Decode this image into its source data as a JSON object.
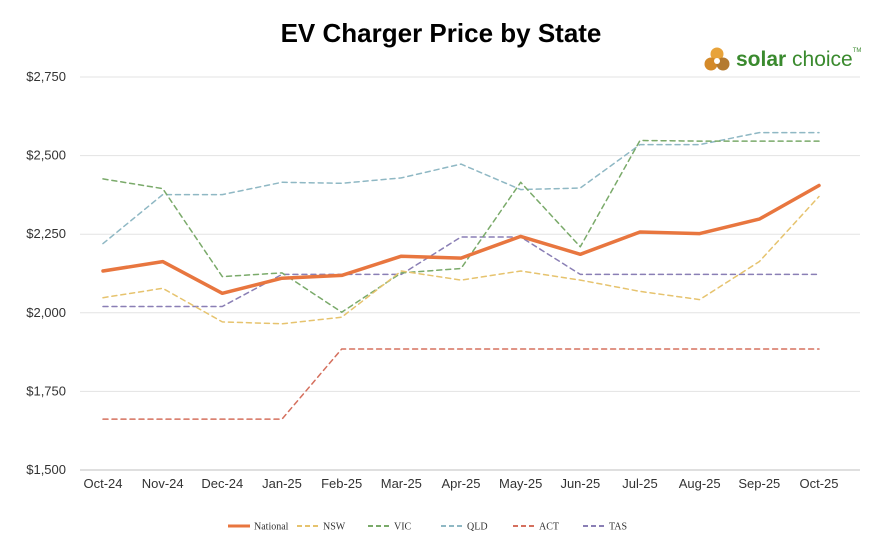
{
  "chart_data": {
    "type": "line",
    "title": "EV Charger Price by State",
    "xlabel": "",
    "ylabel": "",
    "categories": [
      "Oct-24",
      "Nov-24",
      "Dec-24",
      "Jan-25",
      "Feb-25",
      "Mar-25",
      "Apr-25",
      "May-25",
      "Jun-25",
      "Jul-25",
      "Aug-25",
      "Sep-25",
      "Oct-25"
    ],
    "ylim": [
      1500,
      2750
    ],
    "yticks": [
      1500,
      1750,
      2000,
      2250,
      2500,
      2750
    ],
    "ytick_labels": [
      "$1,500",
      "$1,750",
      "$2,000",
      "$2,250",
      "$2,500",
      "$2,750"
    ],
    "grid": true,
    "legend_position": "bottom",
    "series": [
      {
        "name": "National",
        "color": "#e8763f",
        "dashed": false,
        "values": [
          2133,
          2163,
          2062,
          2110,
          2119,
          2180,
          2174,
          2243,
          2186,
          2257,
          2252,
          2298,
          2405
        ]
      },
      {
        "name": "NSW",
        "color": "#e6c36e",
        "dashed": true,
        "values": [
          2048,
          2078,
          1971,
          1965,
          1986,
          2133,
          2104,
          2133,
          2104,
          2068,
          2042,
          2163,
          2370
        ]
      },
      {
        "name": "VIC",
        "color": "#7aaa6a",
        "dashed": true,
        "values": [
          2426,
          2395,
          2115,
          2127,
          2002,
          2127,
          2141,
          2415,
          2210,
          2548,
          2546,
          2546,
          2546
        ]
      },
      {
        "name": "QLD",
        "color": "#8fb8c4",
        "dashed": true,
        "values": [
          2220,
          2376,
          2376,
          2415,
          2412,
          2429,
          2473,
          2392,
          2397,
          2535,
          2535,
          2573,
          2573
        ]
      },
      {
        "name": "ACT",
        "color": "#d5705e",
        "dashed": true,
        "values": [
          1662,
          1662,
          1662,
          1662,
          1885,
          1885,
          1885,
          1885,
          1885,
          1885,
          1885,
          1885,
          1885
        ]
      },
      {
        "name": "TAS",
        "color": "#8a7fb5",
        "dashed": true,
        "values": [
          2020,
          2020,
          2020,
          2122,
          2122,
          2122,
          2241,
          2241,
          2122,
          2122,
          2122,
          2122,
          2122
        ]
      }
    ]
  },
  "logo": {
    "word_bold": "solar",
    "word_light": " choice",
    "tm": "TM"
  }
}
